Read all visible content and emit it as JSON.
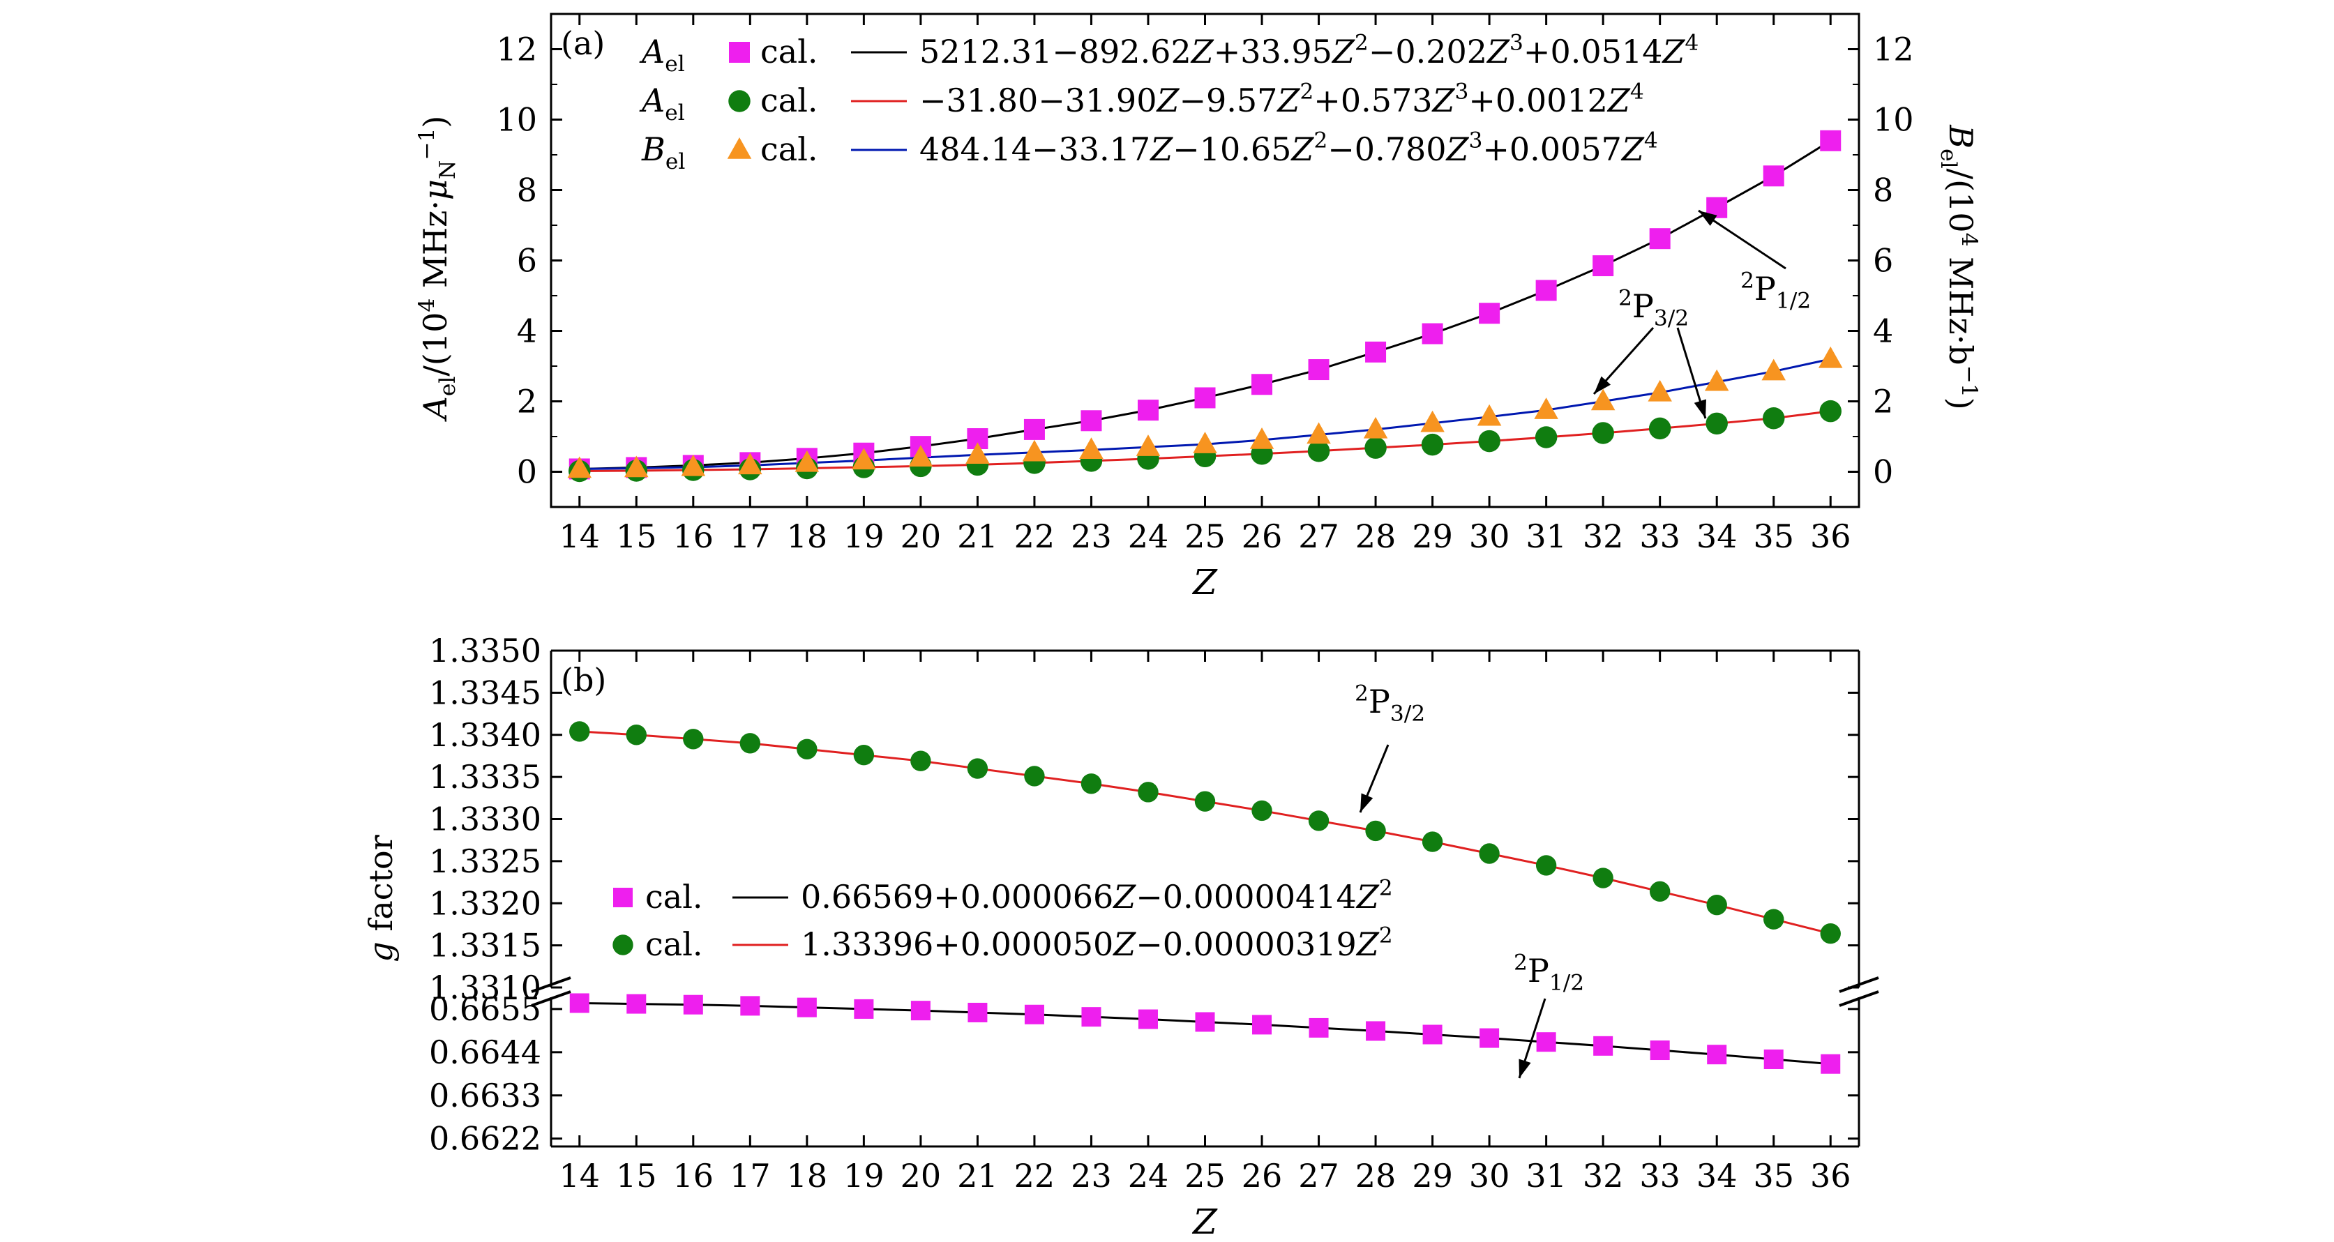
{
  "chart_data": [
    {
      "panel_label": "(a)",
      "type": "scatter",
      "xlabel": "Z",
      "ylabel": "A_el/(10^4 MHz·μ_N^−1)",
      "ylabel_right": "B_el/(10^4 MHz·b^−1)",
      "xlim": [
        13.5,
        36.5
      ],
      "ylim": [
        -1,
        13
      ],
      "yticks": [
        0,
        2,
        4,
        6,
        8,
        10,
        12
      ],
      "x": [
        14,
        15,
        16,
        17,
        18,
        19,
        20,
        21,
        22,
        23,
        24,
        25,
        26,
        27,
        28,
        29,
        30,
        31,
        32,
        33,
        34,
        35,
        36
      ],
      "series": [
        {
          "name": "A_el",
          "marker": "square",
          "color": "#ee1fee",
          "legend_text": "cal.",
          "fit_label": "5212.31−892.62Z+33.95Z^2−0.202Z^3+0.0514Z^4",
          "fit_color": "#000000",
          "values": [
            0.08,
            0.12,
            0.18,
            0.26,
            0.38,
            0.53,
            0.72,
            0.94,
            1.2,
            1.45,
            1.75,
            2.1,
            2.48,
            2.9,
            3.4,
            3.92,
            4.5,
            5.15,
            5.85,
            6.62,
            7.5,
            8.4,
            9.4
          ]
        },
        {
          "name": "A_el",
          "marker": "circle",
          "color": "#107d10",
          "legend_text": "cal.",
          "fit_label": "−31.80−31.90Z−9.57Z^2+0.573Z^3+0.0012Z^4",
          "fit_color": "#e02020",
          "values": [
            0.02,
            0.03,
            0.05,
            0.07,
            0.1,
            0.13,
            0.16,
            0.2,
            0.25,
            0.31,
            0.37,
            0.44,
            0.51,
            0.59,
            0.68,
            0.77,
            0.87,
            0.98,
            1.1,
            1.23,
            1.37,
            1.52,
            1.72
          ]
        },
        {
          "name": "B_el",
          "marker": "triangle",
          "color": "#f79420",
          "legend_text": "cal.",
          "fit_label": "484.14−33.17Z−10.65Z^2−0.780Z^3+0.0057Z^4",
          "fit_color": "#0018b0",
          "values": [
            0.08,
            0.1,
            0.13,
            0.18,
            0.25,
            0.32,
            0.4,
            0.48,
            0.55,
            0.62,
            0.7,
            0.78,
            0.9,
            1.05,
            1.2,
            1.38,
            1.56,
            1.75,
            2.0,
            2.25,
            2.55,
            2.85,
            3.2
          ]
        }
      ],
      "annotations": [
        {
          "text": "2P1/2",
          "base": "P",
          "sup": "2",
          "sub": "1/2"
        },
        {
          "text": "2P3/2",
          "base": "P",
          "sup": "2",
          "sub": "3/2"
        }
      ]
    },
    {
      "panel_label": "(b)",
      "type": "scatter",
      "xlabel": "Z",
      "ylabel": "g factor",
      "xlim": [
        13.5,
        36.5
      ],
      "ylim_upper": [
        1.331,
        1.335
      ],
      "yticks_upper": [
        "1.3350",
        "1.3345",
        "1.3340",
        "1.3335",
        "1.3330",
        "1.3325",
        "1.3320",
        "1.3315",
        "1.3310"
      ],
      "ylim_lower": [
        0.662,
        0.6658
      ],
      "yticks_lower": [
        "0.6655",
        "0.6644",
        "0.6633",
        "0.6622"
      ],
      "axis_break": true,
      "x": [
        14,
        15,
        16,
        17,
        18,
        19,
        20,
        21,
        22,
        23,
        24,
        25,
        26,
        27,
        28,
        29,
        30,
        31,
        32,
        33,
        34,
        35,
        36
      ],
      "series": [
        {
          "name": "2P1/2",
          "marker": "square",
          "color": "#ee1fee",
          "legend_text": "cal.",
          "fit_label": "0.66569+0.000066Z−0.00000414Z^2",
          "fit_color": "#000000",
          "values": [
            0.66565,
            0.66563,
            0.66561,
            0.66558,
            0.66554,
            0.6655,
            0.66546,
            0.66541,
            0.66536,
            0.6653,
            0.66524,
            0.66517,
            0.6651,
            0.66502,
            0.66494,
            0.66485,
            0.66476,
            0.66466,
            0.66456,
            0.66445,
            0.66434,
            0.66422,
            0.6641
          ]
        },
        {
          "name": "2P3/2",
          "marker": "circle",
          "color": "#107d10",
          "legend_text": "cal.",
          "fit_label": "1.33396+0.000050Z−0.00000319Z^2",
          "fit_color": "#e02020",
          "values": [
            1.33404,
            1.334,
            1.33395,
            1.3339,
            1.33383,
            1.33376,
            1.33369,
            1.3336,
            1.33351,
            1.33342,
            1.33332,
            1.33321,
            1.3331,
            1.33298,
            1.33286,
            1.33273,
            1.33259,
            1.33245,
            1.3323,
            1.33214,
            1.33198,
            1.33181,
            1.33164
          ]
        }
      ],
      "annotations": [
        {
          "text": "2P3/2",
          "base": "P",
          "sup": "2",
          "sub": "3/2"
        },
        {
          "text": "2P1/2",
          "base": "P",
          "sup": "2",
          "sub": "1/2"
        }
      ]
    }
  ]
}
